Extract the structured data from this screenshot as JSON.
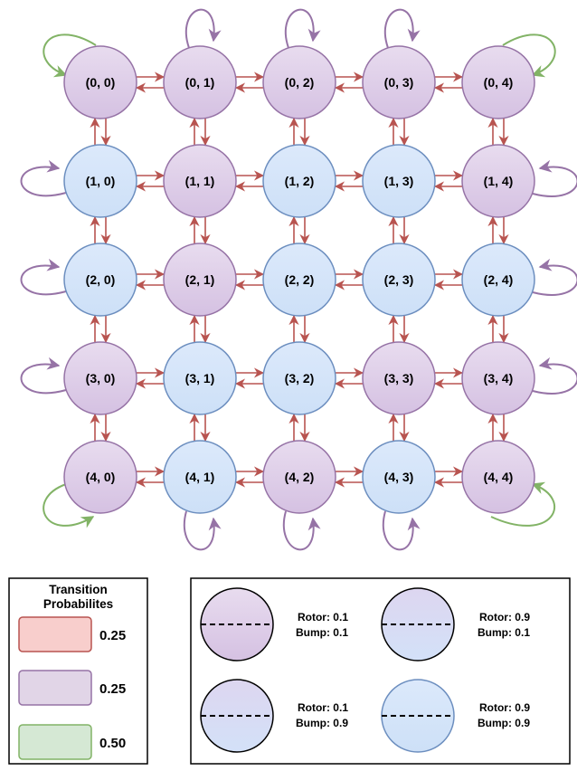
{
  "grid": {
    "rows": 5,
    "cols": 5,
    "nodes": [
      {
        "label": "(0, 0)",
        "type": "purple"
      },
      {
        "label": "(0, 1)",
        "type": "purple"
      },
      {
        "label": "(0, 2)",
        "type": "purple"
      },
      {
        "label": "(0, 3)",
        "type": "purple"
      },
      {
        "label": "(0, 4)",
        "type": "purple"
      },
      {
        "label": "(1, 0)",
        "type": "blue"
      },
      {
        "label": "(1, 1)",
        "type": "purple"
      },
      {
        "label": "(1, 2)",
        "type": "blue"
      },
      {
        "label": "(1, 3)",
        "type": "blue"
      },
      {
        "label": "(1, 4)",
        "type": "purple"
      },
      {
        "label": "(2, 0)",
        "type": "blue"
      },
      {
        "label": "(2, 1)",
        "type": "purple"
      },
      {
        "label": "(2, 2)",
        "type": "blue"
      },
      {
        "label": "(2, 3)",
        "type": "blue"
      },
      {
        "label": "(2, 4)",
        "type": "blue"
      },
      {
        "label": "(3, 0)",
        "type": "purple"
      },
      {
        "label": "(3, 1)",
        "type": "blue"
      },
      {
        "label": "(3, 2)",
        "type": "blue"
      },
      {
        "label": "(3, 3)",
        "type": "purple"
      },
      {
        "label": "(3, 4)",
        "type": "purple"
      },
      {
        "label": "(4, 0)",
        "type": "purple"
      },
      {
        "label": "(4, 1)",
        "type": "blue"
      },
      {
        "label": "(4, 2)",
        "type": "purple"
      },
      {
        "label": "(4, 3)",
        "type": "blue"
      },
      {
        "label": "(4, 4)",
        "type": "purple"
      }
    ]
  },
  "legend": {
    "title_line1": "Transition",
    "title_line2": "Probabilites",
    "items": [
      {
        "value": "0.25",
        "color": "red"
      },
      {
        "value": "0.25",
        "color": "purple"
      },
      {
        "value": "0.50",
        "color": "green"
      }
    ]
  },
  "key": {
    "items": [
      {
        "type": "purple",
        "rotor": "Rotor: 0.1",
        "bump": "Bump: 0.1"
      },
      {
        "type": "blue-dark",
        "rotor": "Rotor: 0.9",
        "bump": "Bump: 0.1"
      },
      {
        "type": "purple-dark",
        "rotor": "Rotor: 0.1",
        "bump": "Bump: 0.9"
      },
      {
        "type": "blue",
        "rotor": "Rotor: 0.9",
        "bump": "Bump: 0.9"
      }
    ]
  },
  "colors": {
    "red_arrow": "#b85450",
    "purple_arrow": "#9673a6",
    "green_arrow": "#82b366",
    "purple_fill_top": "#e1d5e7",
    "purple_fill_bottom": "#d3c0e0",
    "blue_fill_top": "#dae8fc",
    "blue_fill_bottom": "#cfe0f8",
    "purple_stroke": "#9673a6",
    "blue_stroke": "#6c8ebf"
  }
}
